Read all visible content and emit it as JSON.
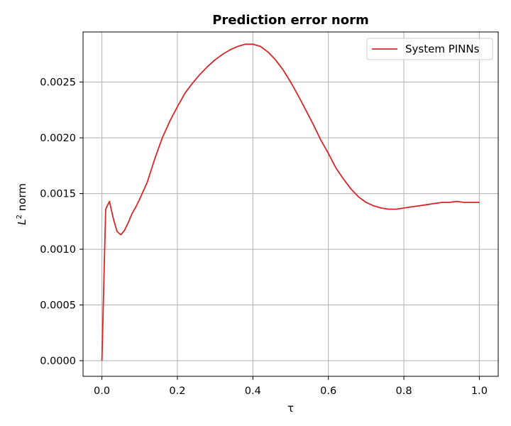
{
  "chart_data": {
    "type": "line",
    "title": "Prediction error norm",
    "xlabel": "τ",
    "ylabel_main": "L",
    "ylabel_sup": "2",
    "ylabel_rest": " norm",
    "xlim": [
      -0.05,
      1.05
    ],
    "ylim": [
      -0.00014,
      0.00295
    ],
    "grid": true,
    "legend_position": "top-right",
    "x_ticks": [
      0.0,
      0.2,
      0.4,
      0.6,
      0.8,
      1.0
    ],
    "x_tick_labels": [
      "0.0",
      "0.2",
      "0.4",
      "0.6",
      "0.8",
      "1.0"
    ],
    "y_ticks": [
      0.0,
      0.0005,
      0.001,
      0.0015,
      0.002,
      0.0025
    ],
    "y_tick_labels": [
      "0.0000",
      "0.0005",
      "0.0010",
      "0.0015",
      "0.0020",
      "0.0025"
    ],
    "series": [
      {
        "name": "System PINNs",
        "color": "#d62728",
        "x": [
          0.0,
          0.01,
          0.02,
          0.03,
          0.04,
          0.05,
          0.06,
          0.07,
          0.08,
          0.09,
          0.1,
          0.12,
          0.14,
          0.16,
          0.18,
          0.2,
          0.22,
          0.24,
          0.26,
          0.28,
          0.3,
          0.32,
          0.34,
          0.36,
          0.38,
          0.4,
          0.42,
          0.44,
          0.46,
          0.48,
          0.5,
          0.52,
          0.54,
          0.56,
          0.58,
          0.6,
          0.62,
          0.64,
          0.66,
          0.68,
          0.7,
          0.72,
          0.74,
          0.76,
          0.78,
          0.8,
          0.82,
          0.84,
          0.86,
          0.88,
          0.9,
          0.92,
          0.94,
          0.96,
          0.98,
          1.0
        ],
        "y": [
          0.0,
          0.00136,
          0.00143,
          0.00128,
          0.00116,
          0.00113,
          0.00117,
          0.00124,
          0.00132,
          0.00138,
          0.00145,
          0.0016,
          0.00181,
          0.002,
          0.00215,
          0.00228,
          0.0024,
          0.00249,
          0.00257,
          0.00264,
          0.0027,
          0.00275,
          0.00279,
          0.00282,
          0.00284,
          0.00284,
          0.00282,
          0.00277,
          0.0027,
          0.00261,
          0.0025,
          0.00238,
          0.00225,
          0.00212,
          0.00198,
          0.00186,
          0.00173,
          0.00163,
          0.00154,
          0.00147,
          0.00142,
          0.00139,
          0.00137,
          0.00136,
          0.00136,
          0.00137,
          0.00138,
          0.00139,
          0.0014,
          0.00141,
          0.00142,
          0.00142,
          0.00143,
          0.00142,
          0.00142,
          0.00142
        ]
      }
    ]
  }
}
